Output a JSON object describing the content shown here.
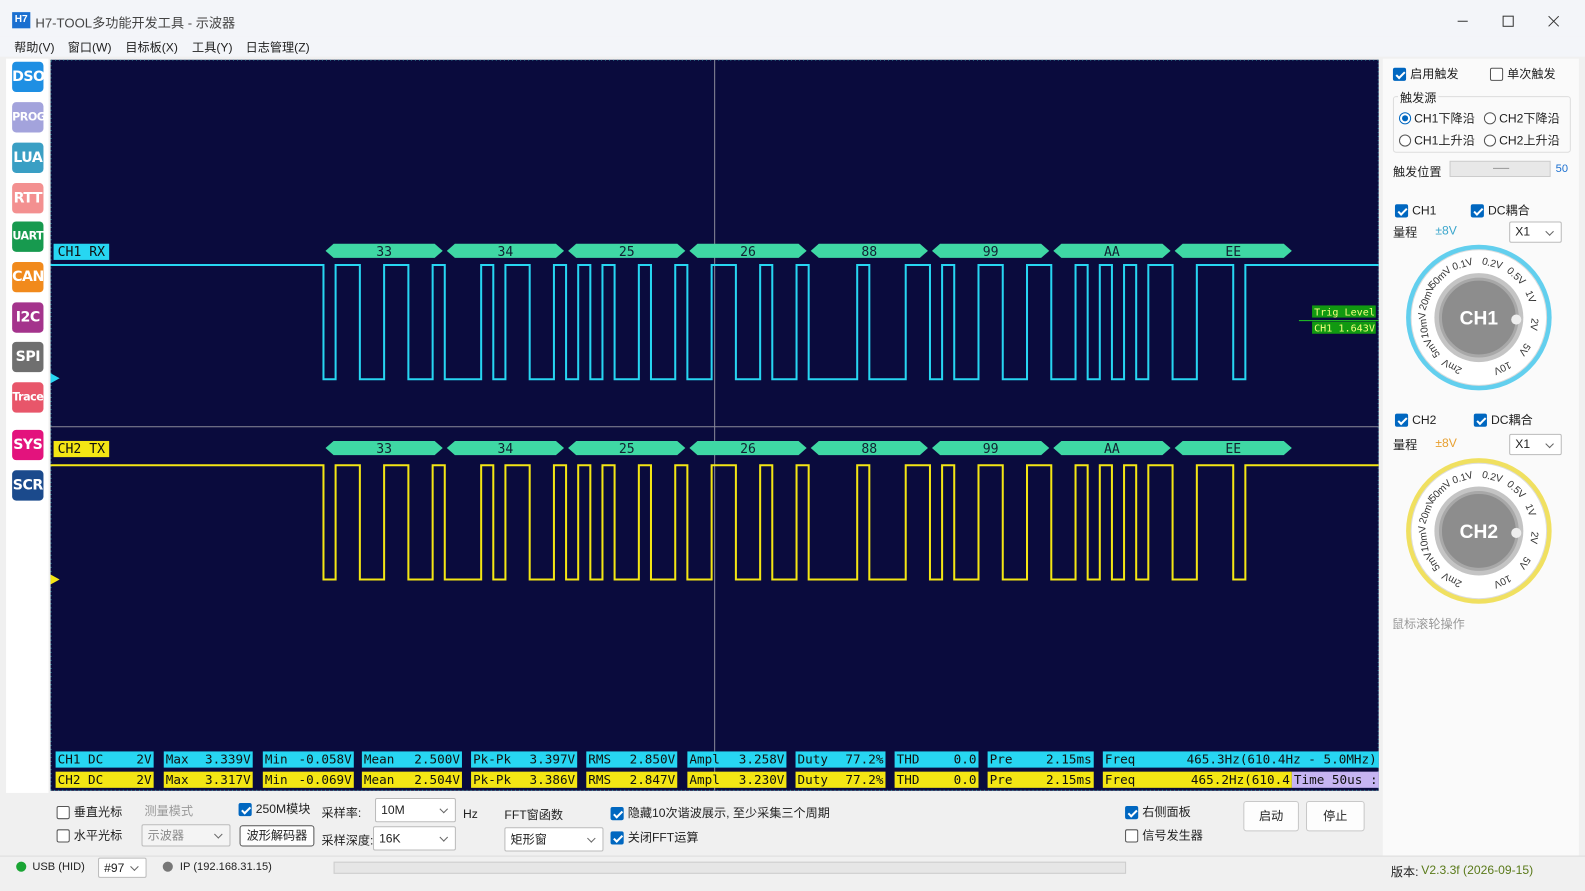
{
  "window": {
    "icon": "H7",
    "title": "H7-TOOL多功能开发工具 - 示波器"
  },
  "menu": [
    "帮助(V)",
    "窗口(W)",
    "目标板(X)",
    "工具(Y)",
    "日志管理(Z)"
  ],
  "sidebar": [
    {
      "label": "DSO",
      "color": "#1e8fe3"
    },
    {
      "label": "PROG",
      "color": "#a3a3dc"
    },
    {
      "label": "LUA",
      "color": "#3a9fc4"
    },
    {
      "label": "RTT",
      "color": "#f39090"
    },
    {
      "label": "UART",
      "color": "#179a4f"
    },
    {
      "label": "CAN",
      "color": "#f18a1c"
    },
    {
      "label": "I2C",
      "color": "#a4338c"
    },
    {
      "label": "SPI",
      "color": "#6f6f6f"
    },
    {
      "label": "Trace",
      "color": "#e8566a"
    },
    {
      "label": "SYS",
      "color": "#e3137d"
    },
    {
      "label": "SCR",
      "color": "#1b4a8c"
    }
  ],
  "scope": {
    "channels": [
      {
        "name": "CH1 RX",
        "color": "#27d6f2",
        "decode": [
          "33",
          "34",
          "25",
          "26",
          "88",
          "99",
          "AA",
          "EE"
        ]
      },
      {
        "name": "CH2 TX",
        "color": "#f4e614",
        "decode": [
          "33",
          "34",
          "25",
          "26",
          "88",
          "99",
          "AA",
          "EE"
        ]
      }
    ],
    "trigger": {
      "label": "Trig Level",
      "value": "CH1 1.643V"
    },
    "measurements": [
      [
        {
          "name": "CH1 DC",
          "value": "2V"
        },
        {
          "name": "Max",
          "value": "3.339V"
        },
        {
          "name": "Min",
          "value": "-0.058V"
        },
        {
          "name": "Mean",
          "value": "2.500V"
        },
        {
          "name": "Pk-Pk",
          "value": "3.397V"
        },
        {
          "name": "RMS",
          "value": "2.850V"
        },
        {
          "name": "Ampl",
          "value": "3.258V"
        },
        {
          "name": "Duty",
          "value": "77.2%"
        },
        {
          "name": "THD",
          "value": "0.0"
        },
        {
          "name": "Pre",
          "value": "2.15ms"
        },
        {
          "name": "Freq",
          "value": "465.3Hz(610.4Hz - 5.0MHz)"
        }
      ],
      [
        {
          "name": "CH2 DC",
          "value": "2V"
        },
        {
          "name": "Max",
          "value": "3.317V"
        },
        {
          "name": "Min",
          "value": "-0.069V"
        },
        {
          "name": "Mean",
          "value": "2.504V"
        },
        {
          "name": "Pk-Pk",
          "value": "3.386V"
        },
        {
          "name": "RMS",
          "value": "2.847V"
        },
        {
          "name": "Ampl",
          "value": "3.230V"
        },
        {
          "name": "Duty",
          "value": "77.2%"
        },
        {
          "name": "THD",
          "value": "0.0"
        },
        {
          "name": "Pre",
          "value": "2.15ms"
        },
        {
          "name": "Freq",
          "value": "465.2Hz(610.4"
        }
      ]
    ],
    "time_label": "Time 50us :"
  },
  "controls": {
    "vertical_cursor": {
      "label": "垂直光标",
      "checked": false
    },
    "horizontal_cursor": {
      "label": "水平光标",
      "checked": false
    },
    "measure_mode": {
      "label": "测量模式",
      "value": "示波器"
    },
    "module_250m": {
      "label": "250M模块",
      "checked": true
    },
    "decoder_button": "波形解码器",
    "sample_rate": {
      "label": "采样率:",
      "value": "10M",
      "unit": "Hz"
    },
    "sample_depth": {
      "label": "采样深度:",
      "value": "16K"
    },
    "fft_window": {
      "label": "FFT窗函数",
      "value": "矩形窗"
    },
    "hide_harmonics": {
      "label": "隐藏10次谐波展示, 至少采集三个周期",
      "checked": true
    },
    "disable_fft": {
      "label": "关闭FFT运算",
      "checked": true
    },
    "right_panel": {
      "label": "右侧面板",
      "checked": true
    },
    "signal_generator": {
      "label": "信号发生器",
      "checked": false
    },
    "start": "启动",
    "stop": "停止"
  },
  "right_panel": {
    "enable_trigger": {
      "label": "启用触发",
      "checked": true
    },
    "single_trigger": {
      "label": "单次触发",
      "checked": false
    },
    "trigger_source": {
      "title": "触发源",
      "options": [
        {
          "label": "CH1下降沿",
          "selected": true
        },
        {
          "label": "CH2下降沿",
          "selected": false
        },
        {
          "label": "CH1上升沿",
          "selected": false
        },
        {
          "label": "CH2上升沿",
          "selected": false
        }
      ]
    },
    "trigger_position": {
      "label": "触发位置",
      "value": 50
    },
    "channels": [
      {
        "label": "CH1",
        "checked": true,
        "coupling": {
          "label": "DC耦合",
          "checked": true
        },
        "range_label": "量程",
        "range": "±8V",
        "probe": "X1",
        "knob": "CH1"
      },
      {
        "label": "CH2",
        "checked": true,
        "coupling": {
          "label": "DC耦合",
          "checked": true
        },
        "range_label": "量程",
        "range": "±8V",
        "probe": "X1",
        "knob": "CH2"
      }
    ],
    "knob_scale": [
      "0.1V",
      "0.2V",
      "0.5V",
      "1V",
      "2V",
      "5V",
      "10V",
      "2mV",
      "5mV",
      "10mV",
      "20mV",
      "50mV"
    ],
    "hint": "鼠标滚轮操作"
  },
  "status": {
    "usb": "USB (HID)",
    "port": "#97",
    "ip": "IP (192.168.31.15)",
    "version_label": "版本:",
    "version": "V2.3.3f (2026-09-15)"
  }
}
